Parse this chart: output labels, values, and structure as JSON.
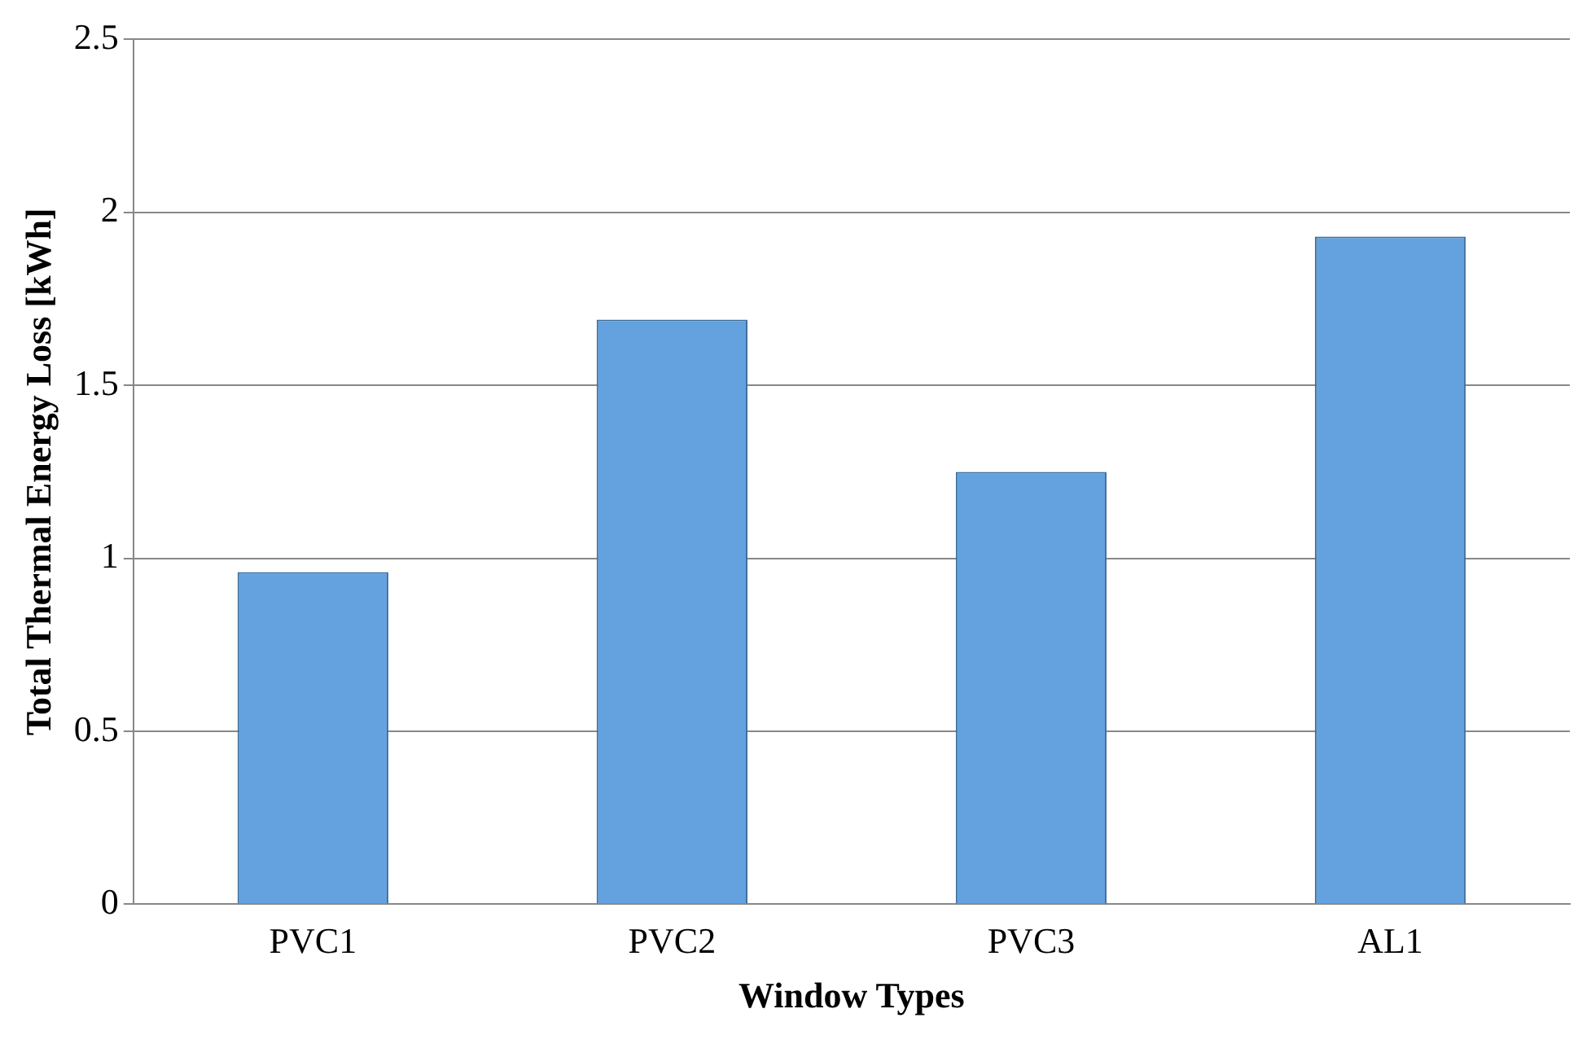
{
  "chart_data": {
    "type": "bar",
    "xlabel": "Window Types",
    "ylabel": "Total Thermal Energy Loss [kWh]",
    "categories": [
      "PVC1",
      "PVC2",
      "PVC3",
      "AL1"
    ],
    "values": [
      0.96,
      1.69,
      1.25,
      1.93
    ],
    "color": "#63a2de",
    "ylim": [
      0,
      2.5
    ],
    "yticks": [
      0,
      0.5,
      1,
      1.5,
      2,
      2.5
    ],
    "grid": "y",
    "legend": false
  }
}
